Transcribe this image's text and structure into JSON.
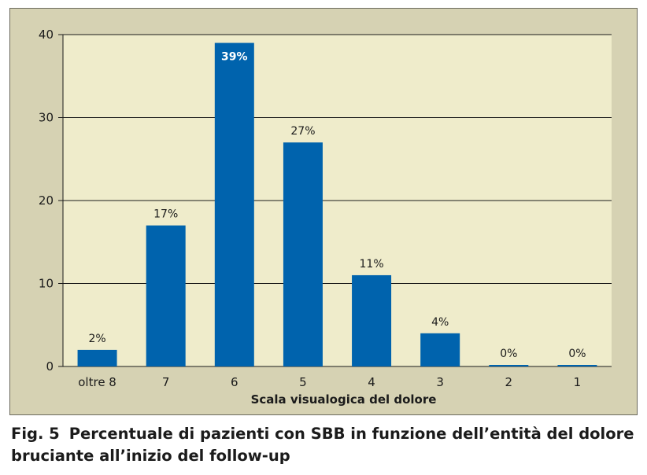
{
  "figure": {
    "caption_label": "Fig. 5",
    "caption_text": "Percentuale di pazienti con SBB in funzione dell’entità del dolore bruciante all’inizio del follow-up"
  },
  "chart_data": {
    "type": "bar",
    "title": "",
    "xlabel": "Scala visualogica del dolore",
    "ylabel": "",
    "categories": [
      "oltre 8",
      "7",
      "6",
      "5",
      "4",
      "3",
      "2",
      "1"
    ],
    "values": [
      2,
      17,
      39,
      27,
      11,
      4,
      0,
      0
    ],
    "value_labels": [
      "2%",
      "17%",
      "39%",
      "27%",
      "11%",
      "4%",
      "0%",
      "0%"
    ],
    "ylim": [
      0,
      40
    ],
    "yticks": [
      0,
      10,
      20,
      30,
      40
    ],
    "grid": true,
    "legend": "none",
    "colors": {
      "bar": "#0063ad",
      "plot_background": "#efeccb",
      "frame_background": "#d6d2b3",
      "gridline": "#1b1b1b"
    }
  }
}
